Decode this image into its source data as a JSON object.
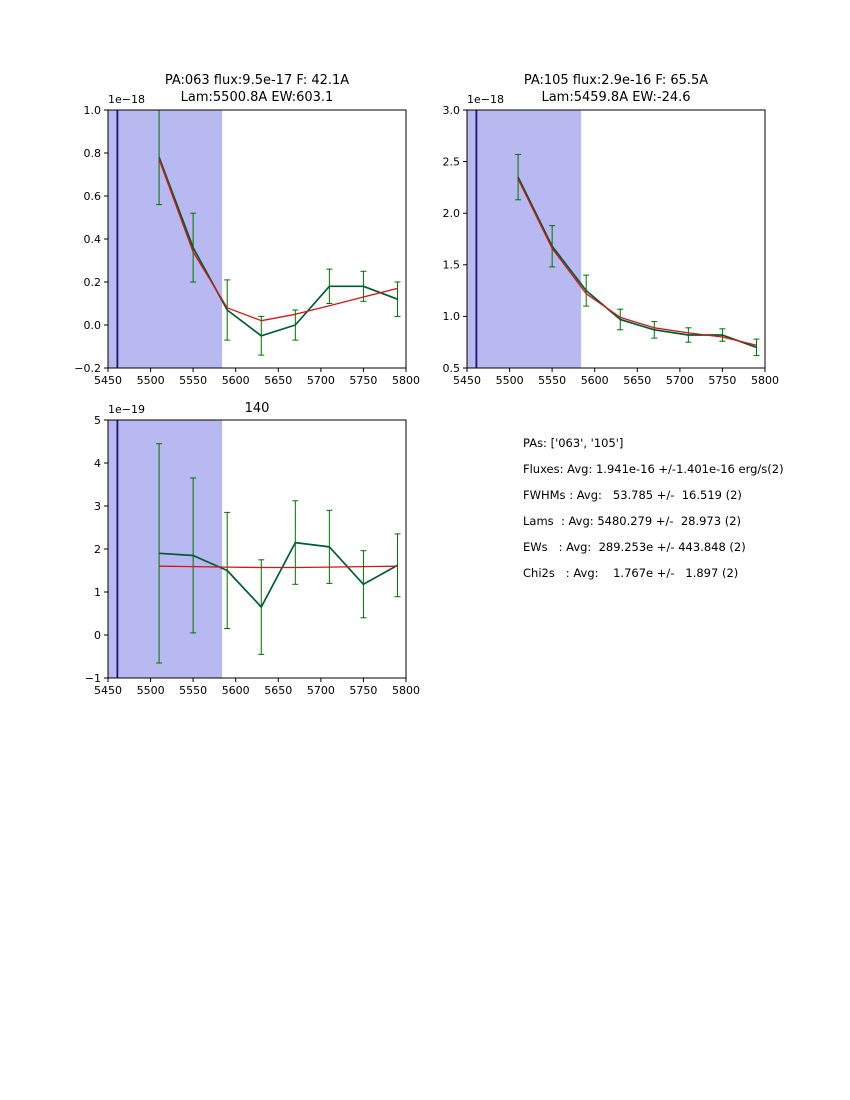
{
  "figure": {
    "background": "#ffffff",
    "band_color": "#b9b9f2",
    "vline_color": "#16166b",
    "data_color": "#005a32",
    "error_color": "#007000",
    "fit_color": "#cf1717"
  },
  "chart_data": [
    {
      "type": "line",
      "title_lines": [
        "PA:063 flux:9.5e-17 F: 42.1A",
        "Lam:5500.8A EW:603.1"
      ],
      "y_scale_label": "1e−18",
      "xlabel": "",
      "ylabel": "",
      "xlim": [
        5450,
        5800
      ],
      "ylim": [
        -0.2,
        1.0
      ],
      "grid": false,
      "xticks": [
        5450,
        5500,
        5550,
        5600,
        5650,
        5700,
        5750,
        5800
      ],
      "xtick_labels": [
        "5450",
        "5500",
        "5550",
        "5600",
        "5650",
        "5700",
        "5750",
        "5800"
      ],
      "yticks": [
        -0.2,
        0.0,
        0.2,
        0.4,
        0.6,
        0.8,
        1.0
      ],
      "ytick_labels": [
        "−0.2",
        "0.0",
        "0.2",
        "0.4",
        "0.6",
        "0.8",
        "1.0"
      ],
      "x": [
        5510,
        5550,
        5590,
        5630,
        5670,
        5710,
        5750,
        5790
      ],
      "series": [
        {
          "name": "spectrum",
          "role": "data",
          "values": [
            0.78,
            0.36,
            0.07,
            -0.05,
            0.0,
            0.18,
            0.18,
            0.12
          ],
          "errors": [
            0.22,
            0.16,
            0.14,
            0.09,
            0.07,
            0.08,
            0.07,
            0.08
          ]
        },
        {
          "name": "fit",
          "role": "fit",
          "values": [
            0.77,
            0.34,
            0.08,
            0.02,
            0.05,
            0.09,
            0.13,
            0.17
          ]
        }
      ],
      "shaded_region": {
        "x0": 5450,
        "x1": 5584
      },
      "vline": {
        "x": 5461
      }
    },
    {
      "type": "line",
      "title_lines": [
        "PA:105 flux:2.9e-16 F: 65.5A",
        "Lam:5459.8A EW:-24.6"
      ],
      "y_scale_label": "1e−18",
      "xlabel": "",
      "ylabel": "",
      "xlim": [
        5450,
        5800
      ],
      "ylim": [
        0.5,
        3.0
      ],
      "grid": false,
      "xticks": [
        5450,
        5500,
        5550,
        5600,
        5650,
        5700,
        5750,
        5800
      ],
      "xtick_labels": [
        "5450",
        "5500",
        "5550",
        "5600",
        "5650",
        "5700",
        "5750",
        "5800"
      ],
      "yticks": [
        0.5,
        1.0,
        1.5,
        2.0,
        2.5,
        3.0
      ],
      "ytick_labels": [
        "0.5",
        "1.0",
        "1.5",
        "2.0",
        "2.5",
        "3.0"
      ],
      "x": [
        5510,
        5550,
        5590,
        5630,
        5670,
        5710,
        5750,
        5790
      ],
      "series": [
        {
          "name": "spectrum",
          "role": "data",
          "values": [
            2.35,
            1.68,
            1.25,
            0.97,
            0.87,
            0.82,
            0.82,
            0.7
          ],
          "errors": [
            0.22,
            0.2,
            0.15,
            0.1,
            0.08,
            0.07,
            0.06,
            0.08
          ]
        },
        {
          "name": "fit",
          "role": "fit",
          "values": [
            2.33,
            1.66,
            1.22,
            0.99,
            0.89,
            0.84,
            0.8,
            0.72
          ]
        }
      ],
      "shaded_region": {
        "x0": 5450,
        "x1": 5584
      },
      "vline": {
        "x": 5461
      }
    },
    {
      "type": "line",
      "title_lines": [
        "140"
      ],
      "y_scale_label": "1e−19",
      "xlabel": "",
      "ylabel": "",
      "xlim": [
        5450,
        5800
      ],
      "ylim": [
        -1,
        5
      ],
      "grid": false,
      "xticks": [
        5450,
        5500,
        5550,
        5600,
        5650,
        5700,
        5750,
        5800
      ],
      "xtick_labels": [
        "5450",
        "5500",
        "5550",
        "5600",
        "5650",
        "5700",
        "5750",
        "5800"
      ],
      "yticks": [
        -1,
        0,
        1,
        2,
        3,
        4,
        5
      ],
      "ytick_labels": [
        "−1",
        "0",
        "1",
        "2",
        "3",
        "4",
        "5"
      ],
      "x": [
        5510,
        5550,
        5590,
        5630,
        5670,
        5710,
        5750,
        5790
      ],
      "series": [
        {
          "name": "spectrum",
          "role": "data",
          "values": [
            1.9,
            1.85,
            1.5,
            0.65,
            2.15,
            2.05,
            1.18,
            1.62
          ],
          "errors": [
            2.55,
            1.8,
            1.35,
            1.1,
            0.97,
            0.85,
            0.78,
            0.73
          ]
        },
        {
          "name": "fit",
          "role": "fit",
          "values": [
            1.6,
            1.59,
            1.58,
            1.57,
            1.57,
            1.58,
            1.59,
            1.6
          ]
        }
      ],
      "shaded_region": {
        "x0": 5450,
        "x1": 5584
      },
      "vline": {
        "x": 5461
      }
    }
  ],
  "stats": {
    "lines": [
      "PAs: ['063', '105']",
      "Fluxes: Avg: 1.941e-16 +/-1.401e-16 erg/s(2)",
      "FWHMs : Avg:   53.785 +/-  16.519 (2)",
      "Lams  : Avg: 5480.279 +/-  28.973 (2)",
      "EWs   : Avg:  289.253e +/- 443.848 (2)",
      "Chi2s   : Avg:    1.767e +/-   1.897 (2)"
    ]
  }
}
